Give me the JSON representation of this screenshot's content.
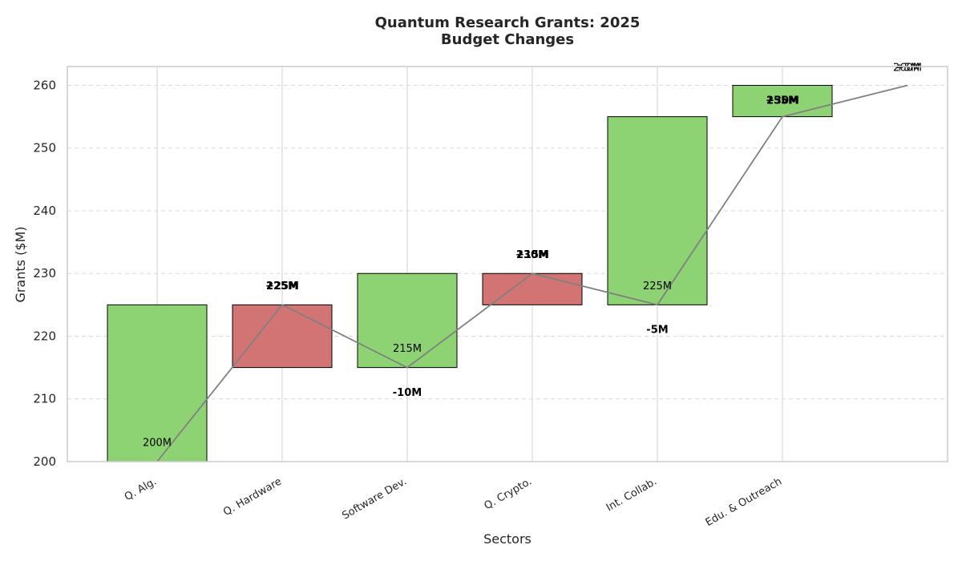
{
  "chart_data": {
    "type": "bar",
    "subtype": "waterfall",
    "title_lines": [
      "Quantum Research Grants: 2025",
      "Budget Changes"
    ],
    "xlabel": "Sectors",
    "ylabel": "Grants ($M)",
    "ylim": [
      200,
      263
    ],
    "yticks": [
      200,
      210,
      220,
      230,
      240,
      250,
      260
    ],
    "grid": true,
    "categories": [
      "Q. Alg.",
      "Q. Hardware",
      "Software Dev.",
      "Q. Crypto.",
      "Int. Collab.",
      "Edu. & Outreach"
    ],
    "bars": [
      {
        "category": "Q. Alg.",
        "bottom": 200,
        "top": 225,
        "color": "#8dd374"
      },
      {
        "category": "Q. Hardware",
        "bottom": 215,
        "top": 225,
        "color": "#d37474"
      },
      {
        "category": "Software Dev.",
        "bottom": 215,
        "top": 230,
        "color": "#8dd374"
      },
      {
        "category": "Q. Crypto.",
        "bottom": 225,
        "top": 230,
        "color": "#d37474"
      },
      {
        "category": "Int. Collab.",
        "bottom": 225,
        "top": 255,
        "color": "#8dd374"
      },
      {
        "category": "Edu. & Outreach",
        "bottom": 255,
        "top": 260,
        "color": "#8dd374"
      }
    ],
    "cumulative_line": {
      "x_index": [
        0,
        1,
        2,
        3,
        4,
        5,
        6
      ],
      "values": [
        200,
        225,
        215,
        230,
        225,
        255,
        260
      ],
      "color": "#808080"
    },
    "value_labels": [
      {
        "x_index": 0,
        "y": 203,
        "text": "200M",
        "style": "normal"
      },
      {
        "x_index": 1,
        "y": 228,
        "text": "225M",
        "style": "bold"
      },
      {
        "x_index": 1,
        "y": 228,
        "text": "+25M",
        "style": "bold"
      },
      {
        "x_index": 2,
        "y": 218,
        "text": "215M",
        "style": "normal"
      },
      {
        "x_index": 2,
        "y": 211,
        "text": "-10M",
        "style": "bold"
      },
      {
        "x_index": 3,
        "y": 233,
        "text": "230M",
        "style": "bold"
      },
      {
        "x_index": 3,
        "y": 233,
        "text": "+15M",
        "style": "bold"
      },
      {
        "x_index": 4,
        "y": 228,
        "text": "225M",
        "style": "normal"
      },
      {
        "x_index": 4,
        "y": 221,
        "text": "-5M",
        "style": "bold"
      },
      {
        "x_index": 5,
        "y": 257.6,
        "text": "255M",
        "style": "bold"
      },
      {
        "x_index": 5,
        "y": 257.6,
        "text": "+30M",
        "style": "bold"
      },
      {
        "x_index": 6,
        "y": 262.8,
        "text": "260M",
        "style": "normal"
      },
      {
        "x_index": 6,
        "y": 262.8,
        "text": "+5M",
        "style": "normal"
      }
    ]
  }
}
